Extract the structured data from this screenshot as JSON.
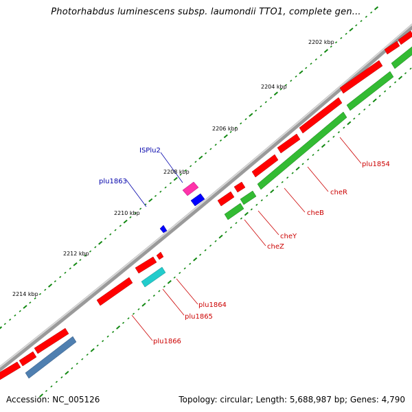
{
  "title": "Photorhabdus luminescens subsp. laumondii TTO1, complete gen...",
  "accession": "Accession: NC_005126",
  "topology": "Topology: circular; Length: 5,688,987 bp; Genes: 4,790",
  "colors": {
    "backbone": "#8a8a8a",
    "forward_cds": "#ff0000",
    "reverse_cds": "#33bb33",
    "mobile_element": "#ff33aa",
    "reverse_mobile": "#0000ff",
    "cyan_cds": "#22cccc",
    "steel_cds": "#4f7fb0",
    "ticks": "#118811",
    "label_red": "#cc0000",
    "label_blue": "#0000aa"
  },
  "tick_labels": [
    "2202 kbp",
    "2204 kbp",
    "2206 kbp",
    "2208 kbp",
    "2210 kbp",
    "2212 kbp",
    "2214 kbp"
  ],
  "feature_labels": {
    "plu1854": "plu1854",
    "cheR": "cheR",
    "cheB": "cheB",
    "cheY": "cheY",
    "cheZ": "cheZ",
    "plu1864": "plu1864",
    "plu1865": "plu1865",
    "plu1866": "plu1866",
    "ISPlu2": "ISPlu2",
    "plu1863": "plu1863"
  }
}
